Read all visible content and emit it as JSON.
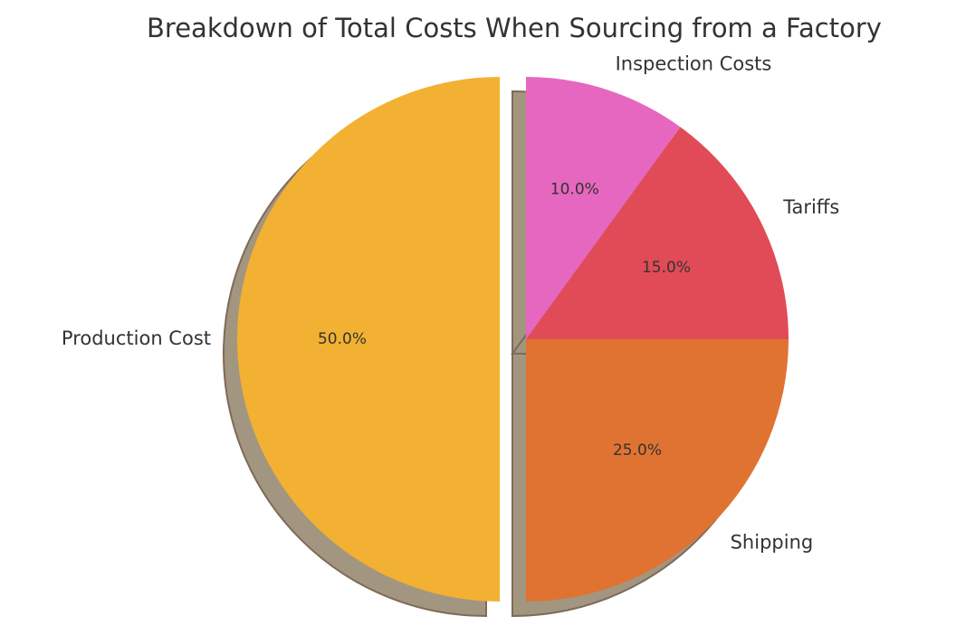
{
  "chart_data": {
    "type": "pie",
    "title": "Breakdown of Total Costs When Sourcing from a Factory",
    "categories": [
      "Production Cost",
      "Shipping",
      "Tariffs",
      "Inspection Costs"
    ],
    "values": [
      50.0,
      25.0,
      15.0,
      10.0
    ],
    "percent_labels": [
      "50.0%",
      "25.0%",
      "15.0%",
      "10.0%"
    ],
    "colors": [
      "#f2b132",
      "#e07331",
      "#e14b57",
      "#e667c0"
    ],
    "shadow_color": "#a39680",
    "exploded": [
      "Production Cost"
    ],
    "start_angle_deg": 90,
    "direction": "counterclockwise",
    "shadow": true
  }
}
